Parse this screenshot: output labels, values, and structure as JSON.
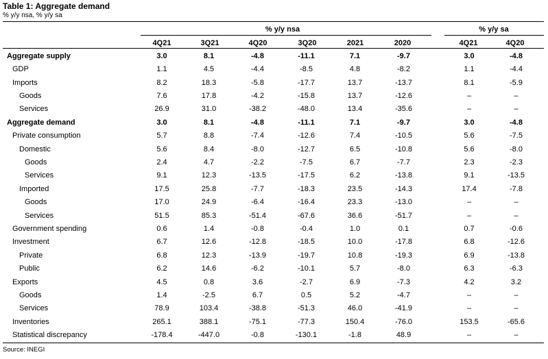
{
  "title": "Table 1: Aggregate demand",
  "subtitle": "% y/y nsa, % y/y sa",
  "source": "Source: INEGI",
  "group_headers": {
    "nsa": "% y/y nsa",
    "sa": "% y/y sa"
  },
  "columns_nsa": [
    "4Q21",
    "3Q21",
    "4Q20",
    "3Q20",
    "2021",
    "2020"
  ],
  "columns_sa": [
    "4Q21",
    "4Q20"
  ],
  "rows": [
    {
      "label": "Aggregate supply",
      "indent": 0,
      "bold": true,
      "values": [
        "3.0",
        "8.1",
        "-4.8",
        "-11.1",
        "7.1",
        "-9.7",
        "3.0",
        "-4.8"
      ]
    },
    {
      "label": "GDP",
      "indent": 1,
      "bold": false,
      "values": [
        "1.1",
        "4.5",
        "-4.4",
        "-8.5",
        "4.8",
        "-8.2",
        "1.1",
        "-4.4"
      ]
    },
    {
      "label": "Imports",
      "indent": 1,
      "bold": false,
      "values": [
        "8.2",
        "18.3",
        "-5.8",
        "-17.7",
        "13.7",
        "-13.7",
        "8.1",
        "-5.9"
      ]
    },
    {
      "label": "Goods",
      "indent": 2,
      "bold": false,
      "values": [
        "7.6",
        "17.8",
        "-4.2",
        "-15.8",
        "13.7",
        "-12.6",
        "–",
        "–"
      ]
    },
    {
      "label": "Services",
      "indent": 2,
      "bold": false,
      "values": [
        "26.9",
        "31.0",
        "-38.2",
        "-48.0",
        "13.4",
        "-35.6",
        "–",
        "–"
      ]
    },
    {
      "label": "Aggregate demand",
      "indent": 0,
      "bold": true,
      "values": [
        "3.0",
        "8.1",
        "-4.8",
        "-11.1",
        "7.1",
        "-9.7",
        "3.0",
        "-4.8"
      ]
    },
    {
      "label": "Private consumption",
      "indent": 1,
      "bold": false,
      "values": [
        "5.7",
        "8.8",
        "-7.4",
        "-12.6",
        "7.4",
        "-10.5",
        "5.6",
        "-7.5"
      ]
    },
    {
      "label": "Domestic",
      "indent": 2,
      "bold": false,
      "values": [
        "5.6",
        "8.4",
        "-8.0",
        "-12.7",
        "6.5",
        "-10.8",
        "5.6",
        "-8.0"
      ]
    },
    {
      "label": "Goods",
      "indent": 3,
      "bold": false,
      "values": [
        "2.4",
        "4.7",
        "-2.2",
        "-7.5",
        "6.7",
        "-7.7",
        "2.3",
        "-2.3"
      ]
    },
    {
      "label": "Services",
      "indent": 3,
      "bold": false,
      "values": [
        "9.1",
        "12.3",
        "-13.5",
        "-17.5",
        "6.2",
        "-13.8",
        "9.1",
        "-13.5"
      ]
    },
    {
      "label": "Imported",
      "indent": 2,
      "bold": false,
      "values": [
        "17.5",
        "25.8",
        "-7.7",
        "-18.3",
        "23.5",
        "-14.3",
        "17.4",
        "-7.8"
      ]
    },
    {
      "label": "Goods",
      "indent": 3,
      "bold": false,
      "values": [
        "17.0",
        "24.9",
        "-6.4",
        "-16.4",
        "23.3",
        "-13.0",
        "–",
        "–"
      ]
    },
    {
      "label": "Services",
      "indent": 3,
      "bold": false,
      "values": [
        "51.5",
        "85.3",
        "-51.4",
        "-67.6",
        "36.6",
        "-51.7",
        "–",
        "–"
      ]
    },
    {
      "label": "Government spending",
      "indent": 1,
      "bold": false,
      "values": [
        "0.6",
        "1.4",
        "-0.8",
        "-0.4",
        "1.0",
        "0.1",
        "0.7",
        "-0.6"
      ]
    },
    {
      "label": "Investment",
      "indent": 1,
      "bold": false,
      "values": [
        "6.7",
        "12.6",
        "-12.8",
        "-18.5",
        "10.0",
        "-17.8",
        "6.8",
        "-12.6"
      ]
    },
    {
      "label": "Private",
      "indent": 2,
      "bold": false,
      "values": [
        "6.8",
        "12.3",
        "-13.9",
        "-19.7",
        "10.8",
        "-19.3",
        "6.9",
        "-13.8"
      ]
    },
    {
      "label": "Public",
      "indent": 2,
      "bold": false,
      "values": [
        "6.2",
        "14.6",
        "-6.2",
        "-10.1",
        "5.7",
        "-8.0",
        "6.3",
        "-6.3"
      ]
    },
    {
      "label": "Exports",
      "indent": 1,
      "bold": false,
      "values": [
        "4.5",
        "0.8",
        "3.6",
        "-2.7",
        "6.9",
        "-7.3",
        "4.2",
        "3.2"
      ]
    },
    {
      "label": "Goods",
      "indent": 2,
      "bold": false,
      "values": [
        "1.4",
        "-2.5",
        "6.7",
        "0.5",
        "5.2",
        "-4.7",
        "–",
        "–"
      ]
    },
    {
      "label": "Services",
      "indent": 2,
      "bold": false,
      "values": [
        "78.9",
        "103.4",
        "-38.8",
        "-51.3",
        "46.0",
        "-41.9",
        "–",
        "–"
      ]
    },
    {
      "label": "Inventories",
      "indent": 1,
      "bold": false,
      "values": [
        "265.1",
        "388.1",
        "-75.1",
        "-77.3",
        "150.4",
        "-76.0",
        "153.5",
        "-65.6"
      ]
    },
    {
      "label": "Statistical discrepancy",
      "indent": 1,
      "bold": false,
      "values": [
        "-178.4",
        "-447.0",
        "-0.8",
        "-130.1",
        "-1.8",
        "48.9",
        "–",
        "–"
      ]
    }
  ]
}
